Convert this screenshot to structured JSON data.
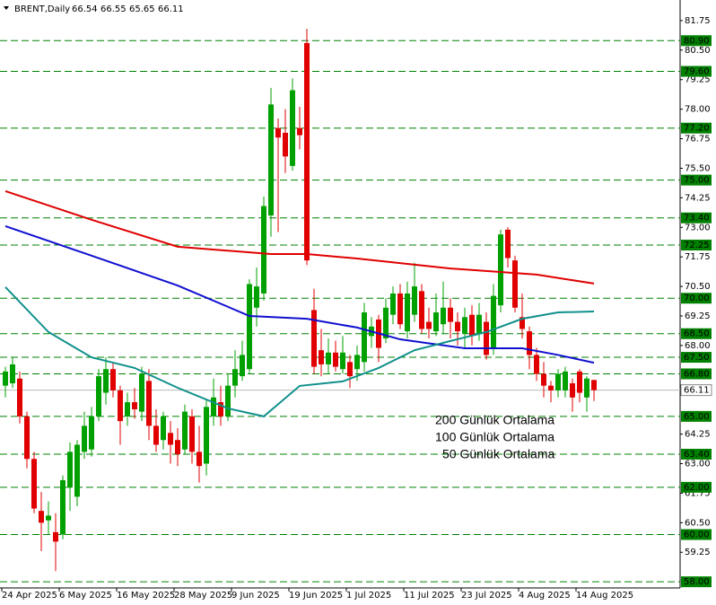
{
  "chart_data": {
    "type": "candlestick",
    "title": "BRENT,Daily",
    "categories": [
      "24 Apr 2025",
      null,
      null,
      null,
      null,
      null,
      null,
      null,
      "6 May 2025",
      null,
      null,
      null,
      null,
      null,
      null,
      null,
      "16 May 2025",
      null,
      null,
      null,
      null,
      null,
      null,
      null,
      "28 May 2025",
      null,
      null,
      null,
      null,
      null,
      null,
      null,
      "9 Jun 2025",
      null,
      null,
      null,
      null,
      null,
      null,
      null,
      "19 Jun 2025",
      null,
      null,
      null,
      null,
      null,
      null,
      null,
      "1 Jul 2025",
      null,
      null,
      null,
      null,
      null,
      null,
      null,
      "11 Jul 2025",
      null,
      null,
      null,
      null,
      null,
      null,
      null,
      "23 Jul 2025",
      null,
      null,
      null,
      null,
      null,
      null,
      null,
      "4 Aug 2025",
      null,
      null,
      null,
      null,
      null,
      null,
      null,
      "14 Aug 2025",
      null,
      null
    ],
    "open": [
      66.3,
      66.4,
      66.6,
      65.0,
      63.2,
      61.0,
      60.6,
      60.1,
      60.0,
      62.0,
      61.6,
      63.5,
      63.6,
      65.0,
      66.0,
      67.0,
      66.1,
      65.0,
      65.6,
      65.2,
      66.5,
      64.6,
      64.0,
      64.3,
      64.0,
      63.6,
      65.0,
      63.5,
      63.0,
      65.0,
      65.6,
      65.0,
      66.3,
      66.7,
      67.0,
      69.6,
      70.2,
      73.5,
      77.2,
      77.0,
      75.6,
      77.2,
      80.8,
      69.5,
      67.8,
      67.2,
      67.7,
      67.0,
      67.3,
      67.0,
      67.3,
      68.4,
      69.1,
      68.3,
      69.3,
      70.2,
      68.6,
      69.3,
      70.3,
      69.0,
      68.6,
      68.9,
      69.6,
      69.0,
      68.5,
      69.3,
      68.5,
      69.0,
      67.9,
      69.7,
      72.9,
      71.6,
      69.2,
      68.6,
      67.6,
      66.8,
      66.3,
      66.1,
      66.1,
      66.4,
      66.9,
      65.8,
      66.54
    ],
    "high": [
      67.1,
      67.5,
      66.9,
      65.2,
      63.5,
      61.8,
      61.4,
      60.9,
      62.5,
      63.9,
      64.0,
      65.2,
      65.4,
      67.0,
      67.5,
      67.3,
      66.3,
      66.0,
      66.2,
      67.1,
      67.0,
      65.3,
      65.2,
      64.8,
      64.5,
      65.5,
      65.3,
      64.6,
      65.7,
      66.6,
      66.3,
      66.8,
      67.8,
      68.2,
      70.8,
      71.3,
      74.3,
      78.9,
      77.6,
      78.0,
      79.3,
      78.1,
      81.4,
      70.4,
      68.7,
      68.3,
      68.2,
      68.4,
      67.6,
      68.0,
      69.8,
      69.2,
      69.3,
      70.0,
      70.5,
      70.6,
      70.7,
      71.5,
      70.6,
      69.6,
      70.2,
      70.7,
      70.0,
      69.4,
      69.6,
      69.7,
      69.8,
      69.4,
      70.6,
      72.9,
      73.0,
      71.8,
      70.2,
      68.8,
      67.9,
      67.3,
      66.5,
      67.0,
      67.1,
      66.6,
      67.0,
      66.7,
      66.55
    ],
    "low": [
      65.8,
      66.2,
      64.7,
      62.8,
      60.9,
      59.3,
      60.0,
      58.45,
      59.8,
      61.0,
      61.2,
      63.2,
      63.3,
      64.8,
      65.5,
      65.8,
      63.8,
      64.6,
      64.9,
      64.8,
      64.0,
      63.5,
      63.6,
      63.0,
      62.9,
      63.4,
      63.0,
      62.2,
      62.5,
      64.6,
      64.6,
      64.8,
      65.8,
      66.5,
      66.8,
      68.8,
      69.9,
      72.6,
      72.8,
      75.3,
      75.4,
      76.3,
      71.4,
      66.8,
      66.7,
      66.8,
      66.9,
      66.8,
      66.2,
      66.5,
      66.9,
      67.9,
      67.3,
      68.1,
      68.9,
      68.7,
      68.3,
      69.0,
      68.5,
      68.3,
      68.4,
      68.5,
      68.3,
      68.0,
      67.9,
      68.0,
      68.2,
      67.4,
      67.6,
      69.4,
      71.3,
      69.4,
      68.3,
      67.0,
      66.5,
      65.8,
      65.6,
      65.8,
      65.8,
      65.2,
      65.6,
      65.2,
      65.65
    ],
    "close": [
      66.9,
      67.2,
      65.0,
      63.2,
      61.1,
      60.5,
      60.8,
      59.7,
      62.3,
      63.5,
      63.8,
      64.6,
      65.0,
      66.7,
      67.0,
      66.1,
      64.8,
      65.6,
      65.3,
      66.8,
      64.6,
      63.8,
      65.0,
      63.8,
      63.4,
      65.2,
      63.5,
      62.9,
      65.4,
      65.8,
      65.0,
      66.3,
      67.0,
      67.6,
      70.6,
      70.5,
      73.9,
      78.2,
      76.8,
      76.0,
      78.8,
      76.9,
      71.6,
      67.1,
      67.2,
      67.7,
      67.1,
      67.7,
      66.7,
      67.6,
      69.4,
      68.8,
      67.9,
      69.6,
      70.2,
      68.9,
      70.2,
      70.5,
      68.7,
      68.7,
      69.4,
      69.6,
      69.0,
      68.6,
      69.2,
      68.4,
      69.3,
      67.6,
      70.1,
      72.7,
      71.7,
      69.6,
      68.7,
      67.6,
      66.8,
      66.3,
      66.1,
      66.8,
      66.9,
      65.8,
      66.0,
      66.6,
      66.11
    ],
    "up_color": "#00a000",
    "down_color": "#e00000",
    "series": [
      {
        "name": "200 Günlük Ortalama",
        "color": "#e00000",
        "x": [
          0,
          12,
          24,
          37,
          42,
          49,
          62,
          74,
          82
        ],
        "values": [
          74.53,
          73.32,
          72.18,
          71.87,
          71.87,
          71.68,
          71.26,
          71.0,
          70.62
        ]
      },
      {
        "name": "100 Günlük Ortalama",
        "color": "#1010d0",
        "x": [
          0,
          12,
          24,
          34,
          42,
          49,
          55,
          64,
          72,
          77,
          82
        ],
        "values": [
          73.05,
          71.8,
          70.54,
          69.25,
          69.13,
          68.76,
          68.26,
          67.88,
          67.88,
          67.6,
          67.27
        ]
      },
      {
        "name": "50 Günlük Ortalama",
        "color": "#10908a",
        "x": [
          0,
          6,
          12,
          18,
          24,
          31,
          36,
          41,
          47,
          52,
          57,
          62,
          67,
          72,
          77,
          82
        ],
        "values": [
          70.47,
          68.57,
          67.5,
          67.05,
          66.21,
          65.34,
          65.0,
          66.29,
          66.48,
          67.05,
          67.8,
          68.19,
          68.57,
          69.13,
          69.4,
          69.44
        ]
      }
    ],
    "ylim": [
      57.74,
      82.62
    ],
    "yticks": [
      81.75,
      {
        "value": 80.5,
        "label": "80.50"
      },
      79.25,
      {
        "value": 78,
        "label": "78.00"
      },
      76.75,
      {
        "value": 75.5,
        "label": "75.50"
      },
      74.25,
      {
        "value": 73,
        "label": "73.00"
      },
      71.75,
      {
        "value": 70.5,
        "label": "70.50"
      },
      69.25,
      {
        "value": 68,
        "label": "68.00"
      },
      64.25,
      {
        "value": 63,
        "label": "63.00"
      },
      61.75,
      {
        "value": 60.5,
        "label": "60.50"
      },
      59.25
    ],
    "levels": [
      {
        "value": 80.9,
        "label": "80.90"
      },
      {
        "value": 79.6,
        "label": "79.60"
      },
      {
        "value": 77.2,
        "label": "77.20"
      },
      {
        "value": 75,
        "label": "75.00"
      },
      {
        "value": 73.4,
        "label": "73.40"
      },
      72.25,
      {
        "value": 70,
        "label": "70.00"
      },
      {
        "value": 68.5,
        "label": "68.50"
      },
      {
        "value": 67.5,
        "label": "67.50"
      },
      {
        "value": 66.8,
        "label": "66.80"
      },
      {
        "value": 65,
        "label": "65.00"
      },
      {
        "value": 63.4,
        "label": "63.40"
      },
      {
        "value": 62,
        "label": "62.00"
      },
      {
        "value": 60,
        "label": "60.00"
      },
      {
        "value": 58,
        "label": "58.00"
      }
    ],
    "level_color": "#008000"
  }
}
